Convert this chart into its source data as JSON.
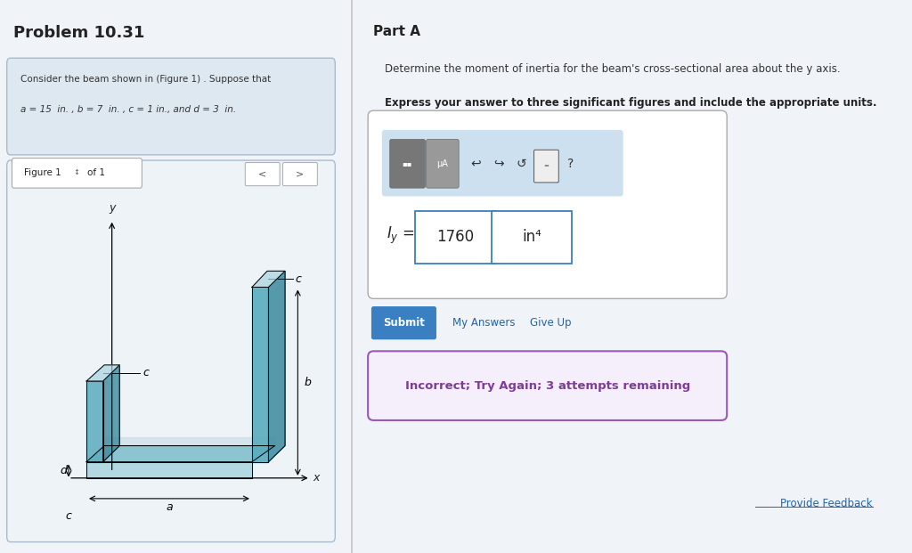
{
  "bg_color": "#f0f4f8",
  "page_bg": "#ffffff",
  "title": "Problem 10.31",
  "problem_text_line1": "Consider the beam shown in (Figure 1) . Suppose that",
  "problem_text_line2": "a = 15  in. , b = 7  in. , c = 1 in., and d = 3  in.",
  "part_a_title": "Part A",
  "part_a_desc": "Determine the moment of inertia for the beam's cross-sectional area about the y axis.",
  "part_a_bold": "Express your answer to three significant figures and include the appropriate units.",
  "answer_value": "1760",
  "answer_units": "in⁴",
  "submit_text": "Submit",
  "my_answers_text": "My Answers",
  "give_up_text": "Give Up",
  "incorrect_text": "Incorrect; Try Again; 3 attempts remaining",
  "figure_label": "Figure 1",
  "of_label": "of 1",
  "provide_feedback": "Provide Feedback",
  "figure_bg": "#eef3f8",
  "teal_dark": "#3a8a9e",
  "teal_light": "#a8d4de",
  "teal_mid": "#5aacbe",
  "submit_btn_color": "#3a7fc1",
  "incorrect_border": "#9b59b6",
  "incorrect_bg": "#f5eefb",
  "incorrect_text_color": "#7d3c98",
  "link_color": "#2563a8"
}
